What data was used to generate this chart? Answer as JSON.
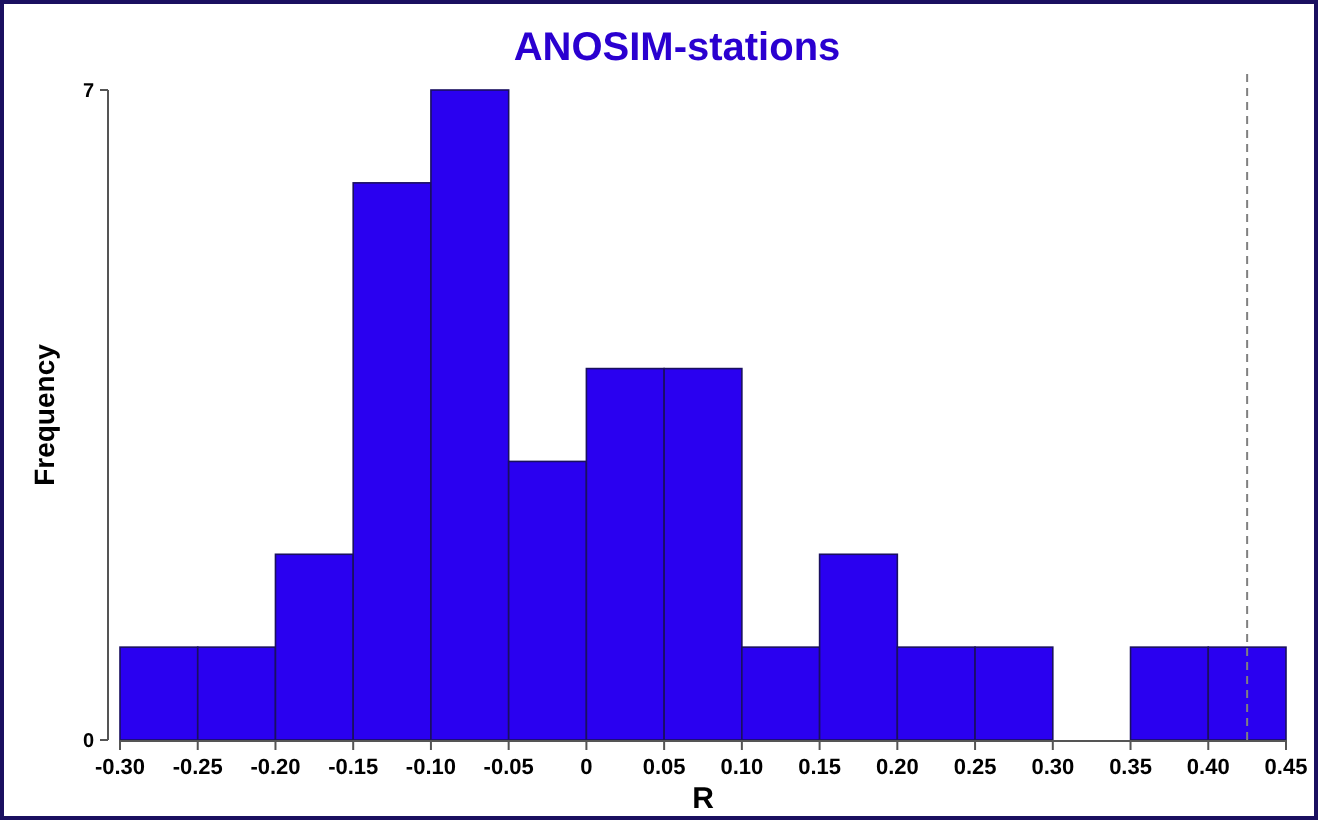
{
  "chart_data": {
    "type": "histogram",
    "title": "ANOSIM-stations",
    "xlabel": "R",
    "ylabel": "Frequency",
    "bins": [
      -0.3,
      -0.25,
      -0.2,
      -0.15,
      -0.1,
      -0.05,
      0,
      0.05,
      0.1,
      0.15,
      0.2,
      0.25,
      0.3,
      0.35,
      0.4,
      0.45
    ],
    "values": [
      1,
      1,
      2,
      6,
      7,
      3,
      4,
      4,
      1,
      2,
      1,
      1,
      0,
      1,
      1
    ],
    "color": "#2a00f0",
    "xlim": [
      -0.3,
      0.45
    ],
    "xticks": [
      {
        "value": -0.3,
        "label": "-0.30"
      },
      {
        "value": -0.25,
        "label": "-0.25"
      },
      {
        "value": -0.2,
        "label": "-0.20"
      },
      {
        "value": -0.15,
        "label": "-0.15"
      },
      {
        "value": -0.1,
        "label": "-0.10"
      },
      {
        "value": -0.05,
        "label": "-0.05"
      },
      0,
      {
        "value": 0.05,
        "label": "0.05"
      },
      {
        "value": 0.1,
        "label": "0.10"
      },
      {
        "value": 0.15,
        "label": "0.15"
      },
      {
        "value": 0.2,
        "label": "0.20"
      },
      {
        "value": 0.25,
        "label": "0.25"
      },
      {
        "value": 0.3,
        "label": "0.30"
      },
      {
        "value": 0.35,
        "label": "0.35"
      },
      {
        "value": 0.4,
        "label": "0.40"
      },
      {
        "value": 0.45,
        "label": "0.45"
      }
    ],
    "ylim": [
      0,
      7
    ],
    "yticks": [
      0,
      7
    ],
    "ref_lines": [
      {
        "axis": "x",
        "value": 0.425,
        "color": "#808080",
        "line_style": "dashed"
      }
    ]
  }
}
